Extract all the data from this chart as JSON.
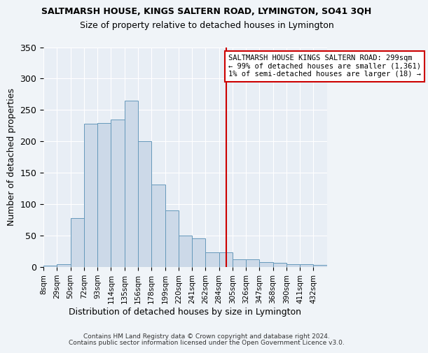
{
  "title": "SALTMARSH HOUSE, KINGS SALTERN ROAD, LYMINGTON, SO41 3QH",
  "subtitle": "Size of property relative to detached houses in Lymington",
  "xlabel": "Distribution of detached houses by size in Lymington",
  "ylabel": "Number of detached properties",
  "bar_values": [
    2,
    5,
    78,
    228,
    229,
    235,
    265,
    200,
    131,
    90,
    50,
    46,
    23,
    24,
    12,
    12,
    8,
    7,
    5,
    5,
    3
  ],
  "bin_labels": [
    "8sqm",
    "29sqm",
    "50sqm",
    "72sqm",
    "93sqm",
    "114sqm",
    "135sqm",
    "156sqm",
    "178sqm",
    "199sqm",
    "220sqm",
    "241sqm",
    "262sqm",
    "284sqm",
    "305sqm",
    "326sqm",
    "347sqm",
    "368sqm",
    "390sqm",
    "411sqm",
    "432sqm"
  ],
  "bar_color": "#ccd9e8",
  "bar_edge_color": "#6699bb",
  "vline_x": 13.55,
  "vline_color": "#cc0000",
  "annotation_box_text": "SALTMARSH HOUSE KINGS SALTERN ROAD: 299sqm\n← 99% of detached houses are smaller (1,361)\n1% of semi-detached houses are larger (18) →",
  "annotation_box_color": "#cc0000",
  "annotation_box_bg": "#ffffff",
  "ylim": [
    0,
    350
  ],
  "yticks": [
    0,
    50,
    100,
    150,
    200,
    250,
    300,
    350
  ],
  "bg_color": "#e8eef5",
  "grid_color": "#ffffff",
  "footer1": "Contains HM Land Registry data © Crown copyright and database right 2024.",
  "footer2": "Contains public sector information licensed under the Open Government Licence v3.0."
}
